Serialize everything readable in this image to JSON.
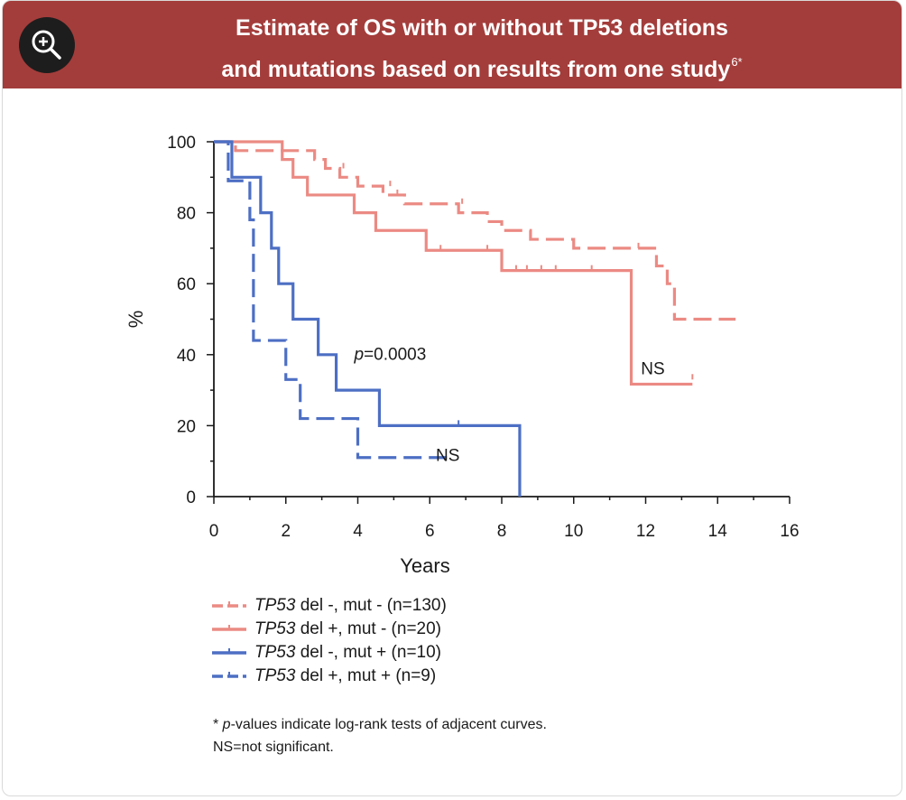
{
  "header": {
    "title_line1": "Estimate of OS with or without TP53 deletions",
    "title_line2": "and mutations based on results from one study",
    "title_sup": "6*",
    "zoom_icon": "zoom-in-icon"
  },
  "colors": {
    "header_bg": "#a33d3b",
    "salmon": "#eb8a83",
    "blue": "#4d6fc4",
    "axis": "#1a1a1a"
  },
  "chart_data": {
    "type": "line",
    "title": "Estimate of OS with or without TP53 deletions and mutations based on results from one study",
    "xlabel": "Years",
    "ylabel": "%",
    "xlim": [
      0,
      16
    ],
    "ylim": [
      0,
      100
    ],
    "x_ticks": [
      0,
      2,
      4,
      6,
      8,
      10,
      12,
      14,
      16
    ],
    "y_ticks": [
      0,
      20,
      40,
      60,
      80,
      100
    ],
    "grid": false,
    "annotations": [
      {
        "text": "p",
        "text2": "=0.0003",
        "x": 4.9,
        "y": 38.5
      },
      {
        "text": "NS",
        "x": 12.2,
        "y": 34.5
      },
      {
        "text": "NS",
        "x": 6.5,
        "y": 10
      }
    ],
    "series": [
      {
        "name": "TP53 del -, mut - (n=130)",
        "gene": "TP53",
        "rest": " del -, mut - (n=130)",
        "color": "salmon",
        "dash": true,
        "steps": [
          [
            0,
            100
          ],
          [
            0.6,
            97.5
          ],
          [
            2.6,
            97.5
          ],
          [
            2.8,
            95
          ],
          [
            3,
            95
          ],
          [
            3.1,
            92.5
          ],
          [
            3.35,
            92.5
          ],
          [
            3.5,
            90
          ],
          [
            3.8,
            90
          ],
          [
            4,
            87.5
          ],
          [
            4.4,
            87.5
          ],
          [
            4.7,
            85
          ],
          [
            5.2,
            85
          ],
          [
            5.3,
            82.5
          ],
          [
            6.7,
            82.5
          ],
          [
            6.8,
            80
          ],
          [
            7.5,
            80
          ],
          [
            7.6,
            77.5
          ],
          [
            7.8,
            77.5
          ],
          [
            8,
            75
          ],
          [
            8.7,
            75
          ],
          [
            8.8,
            72.5
          ],
          [
            9.9,
            72.5
          ],
          [
            10,
            70
          ],
          [
            12.2,
            70
          ],
          [
            12.3,
            65
          ],
          [
            12.5,
            65
          ],
          [
            12.6,
            60
          ],
          [
            12.7,
            60
          ],
          [
            12.8,
            50
          ],
          [
            14.5,
            50
          ]
        ],
        "censors": [
          [
            3.6,
            92.5
          ],
          [
            4.9,
            87.5
          ],
          [
            5.1,
            85
          ],
          [
            6.9,
            82.5
          ],
          [
            11.8,
            70
          ]
        ]
      },
      {
        "name": "TP53 del +, mut - (n=20)",
        "gene": "TP53",
        "rest": " del +, mut - (n=20)",
        "color": "salmon",
        "dash": false,
        "steps": [
          [
            0,
            100
          ],
          [
            1.8,
            100
          ],
          [
            1.9,
            95
          ],
          [
            2.1,
            95
          ],
          [
            2.2,
            90
          ],
          [
            2.5,
            90
          ],
          [
            2.6,
            85
          ],
          [
            3.8,
            85
          ],
          [
            3.9,
            80
          ],
          [
            4.4,
            80
          ],
          [
            4.5,
            75
          ],
          [
            5.8,
            75
          ],
          [
            5.9,
            69.4
          ],
          [
            7.9,
            69.4
          ],
          [
            8,
            63.7
          ],
          [
            11.6,
            63.7
          ],
          [
            11.6,
            31.7
          ],
          [
            13.3,
            31.7
          ]
        ],
        "censors": [
          [
            6.3,
            69.4
          ],
          [
            7.6,
            69.4
          ],
          [
            8.4,
            63.7
          ],
          [
            8.7,
            63.7
          ],
          [
            9.1,
            63.7
          ],
          [
            9.5,
            63.7
          ],
          [
            10.5,
            63.7
          ],
          [
            13.3,
            33
          ]
        ]
      },
      {
        "name": "TP53 del -, mut + (n=10)",
        "gene": "TP53",
        "rest": " del -, mut + (n=10)",
        "color": "blue",
        "dash": false,
        "steps": [
          [
            0,
            100
          ],
          [
            0.5,
            100
          ],
          [
            0.5,
            90
          ],
          [
            1.3,
            90
          ],
          [
            1.3,
            80
          ],
          [
            1.6,
            80
          ],
          [
            1.6,
            70
          ],
          [
            1.8,
            70
          ],
          [
            1.8,
            60
          ],
          [
            2.2,
            60
          ],
          [
            2.2,
            50
          ],
          [
            2.9,
            50
          ],
          [
            2.9,
            40
          ],
          [
            3.4,
            40
          ],
          [
            3.4,
            30
          ],
          [
            4.6,
            30
          ],
          [
            4.6,
            20
          ],
          [
            8.5,
            20
          ],
          [
            8.5,
            0
          ]
        ],
        "censors": [
          [
            6.8,
            20
          ]
        ]
      },
      {
        "name": "TP53 del +, mut + (n=9)",
        "gene": "TP53",
        "rest": " del +, mut + (n=9)",
        "color": "blue",
        "dash": true,
        "steps": [
          [
            0,
            100
          ],
          [
            0.4,
            100
          ],
          [
            0.4,
            89
          ],
          [
            1,
            89
          ],
          [
            1,
            78
          ],
          [
            1.1,
            78
          ],
          [
            1.1,
            44
          ],
          [
            2,
            44
          ],
          [
            2,
            33
          ],
          [
            2.4,
            33
          ],
          [
            2.4,
            22
          ],
          [
            4,
            22
          ],
          [
            4,
            11
          ],
          [
            6.5,
            11
          ]
        ],
        "censors": [
          [
            0.5,
            91
          ]
        ]
      }
    ]
  },
  "legend": {
    "items": [
      {
        "gene": "TP53",
        "rest": " del -, mut - (n=130)"
      },
      {
        "gene": "TP53",
        "rest": " del +, mut - (n=20)"
      },
      {
        "gene": "TP53",
        "rest": " del -, mut + (n=10)"
      },
      {
        "gene": "TP53",
        "rest": " del +, mut + (n=9)"
      }
    ]
  },
  "footnote": {
    "star": "* ",
    "p": "p",
    "line1_rest": "-values indicate log-rank tests of adjacent curves.",
    "line2": "NS=not significant."
  }
}
